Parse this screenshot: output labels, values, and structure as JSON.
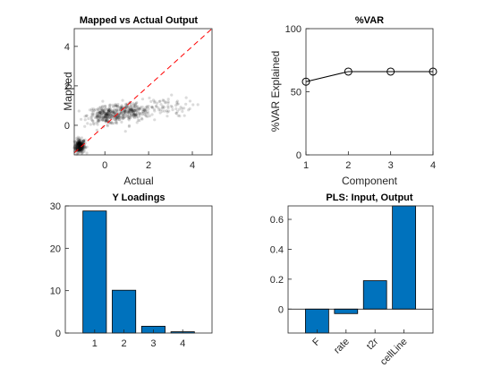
{
  "colors": {
    "bar": "#0072BD",
    "axis": "#262626",
    "diagonal": "#FF0000",
    "points": "#000000"
  },
  "chart_data": [
    {
      "type": "scatter",
      "title": "Mapped vs Actual Output",
      "xlabel": "Actual",
      "ylabel": "Mapped",
      "xlim": [
        -1.4,
        4.9
      ],
      "ylim": [
        -1.5,
        4.9
      ],
      "xticks": [
        "0",
        "2",
        "4"
      ],
      "yticks": [
        "0",
        "2",
        "4"
      ],
      "reference_line": {
        "style": "dashed",
        "color": "#FF0000",
        "x": [
          -1.4,
          4.9
        ],
        "y": [
          -1.4,
          4.9
        ]
      },
      "clusters": [
        {
          "center": [
            -1.15,
            -1.05
          ],
          "spread": [
            0.12,
            0.18
          ],
          "count": 260
        },
        {
          "center": [
            0.1,
            0.5
          ],
          "spread": [
            0.45,
            0.22
          ],
          "count": 260
        },
        {
          "center": [
            1.2,
            0.7
          ],
          "spread": [
            0.45,
            0.25
          ],
          "count": 200
        },
        {
          "center": [
            2.6,
            0.95
          ],
          "spread": [
            0.7,
            0.25
          ],
          "count": 70
        }
      ]
    },
    {
      "type": "line",
      "title": "%VAR",
      "xlabel": "Component",
      "ylabel": "%VAR Explained",
      "x": [
        1,
        2,
        3,
        4
      ],
      "y": [
        58,
        66,
        66,
        66
      ],
      "xlim": [
        1,
        4
      ],
      "ylim": [
        0,
        100
      ],
      "xticks": [
        "1",
        "2",
        "3",
        "4"
      ],
      "yticks": [
        "0",
        "50",
        "100"
      ],
      "marker": "circle"
    },
    {
      "type": "bar",
      "title": "Y Loadings",
      "categories": [
        "1",
        "2",
        "3",
        "4"
      ],
      "values": [
        28.8,
        10.1,
        1.6,
        0.3
      ],
      "xlim": [
        0,
        5
      ],
      "ylim": [
        0,
        30
      ],
      "yticks": [
        "0",
        "10",
        "20",
        "30"
      ]
    },
    {
      "type": "bar",
      "title": "PLS: Input, Output",
      "categories": [
        "F",
        "rate",
        "t2r",
        "cellLine"
      ],
      "values": [
        -0.16,
        -0.03,
        0.19,
        0.69
      ],
      "xlim": [
        0,
        5
      ],
      "ylim": [
        -0.16,
        0.69
      ],
      "yticks": [
        "0",
        "0.2",
        "0.4",
        "0.6"
      ],
      "zero_line": true
    }
  ]
}
